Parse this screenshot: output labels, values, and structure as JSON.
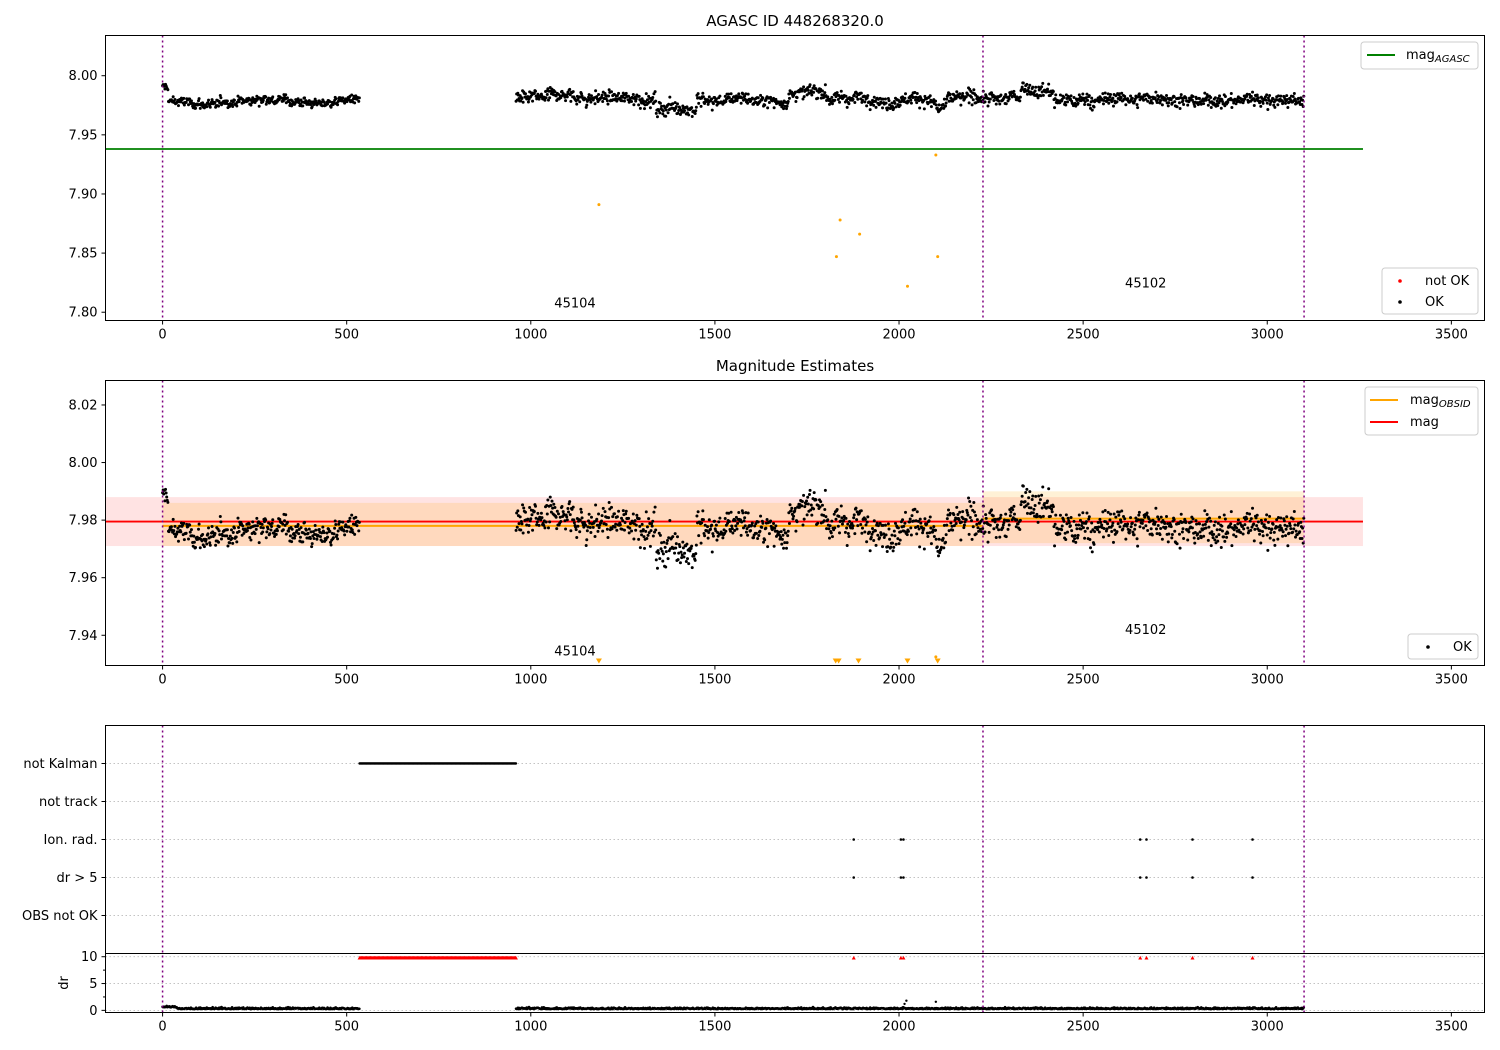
{
  "chart_data": [
    {
      "type": "scatter",
      "title": "AGASC ID 448268320.0",
      "xlim": [
        -155,
        3590
      ],
      "ylim": [
        7.793,
        8.034
      ],
      "xticks": [
        0,
        500,
        1000,
        1500,
        2000,
        2500,
        3000,
        3500
      ],
      "yticks": [
        7.8,
        7.85,
        7.9,
        7.95,
        8.0
      ],
      "ytick_labels": [
        "7.80",
        "7.85",
        "7.90",
        "7.95",
        "8.00"
      ],
      "vlines": [
        0,
        2228,
        3100
      ],
      "hline": {
        "name": "mag_AGASC",
        "y": 7.938,
        "x": [
          -155,
          3260
        ],
        "color": "#008000"
      },
      "segments": [
        {
          "x0": 0,
          "x1": 535,
          "base": 7.976,
          "amp": 0.005
        },
        {
          "x0": 960,
          "x1": 3100,
          "base": 7.978,
          "amp": 0.007
        }
      ],
      "outliers": [
        {
          "x": 1185,
          "y": 7.891
        },
        {
          "x": 1840,
          "y": 7.878
        },
        {
          "x": 1893,
          "y": 7.866
        },
        {
          "x": 1830,
          "y": 7.847
        },
        {
          "x": 2023,
          "y": 7.822
        },
        {
          "x": 2105,
          "y": 7.847
        },
        {
          "x": 2100,
          "y": 7.933
        }
      ],
      "obsid_labels": [
        {
          "text": "45104",
          "x": 1120,
          "y": 7.804
        },
        {
          "text": "45102",
          "x": 2670,
          "y": 7.821
        }
      ],
      "legend_top": [
        {
          "label": "mag",
          "sub": "AGASC",
          "color": "#008000"
        }
      ],
      "legend_bottom": [
        {
          "label": "not OK",
          "color": "#ff0000"
        },
        {
          "label": "OK",
          "color": "#000000"
        }
      ]
    },
    {
      "type": "scatter",
      "title": "Magnitude Estimates",
      "xlim": [
        -155,
        3590
      ],
      "ylim": [
        7.9295,
        8.0285
      ],
      "xticks": [
        0,
        500,
        1000,
        1500,
        2000,
        2500,
        3000,
        3500
      ],
      "yticks": [
        7.94,
        7.96,
        7.98,
        8.0,
        8.02
      ],
      "ytick_labels": [
        "7.94",
        "7.96",
        "7.98",
        "8.00",
        "8.02"
      ],
      "vlines": [
        0,
        2228,
        3100
      ],
      "mag": {
        "y": 7.9795,
        "band": [
          7.971,
          7.988
        ],
        "x": [
          -155,
          3260
        ],
        "color": "#ff0000"
      },
      "mag_obsid": [
        {
          "x0": 0,
          "x1": 2228,
          "y": 7.978,
          "band": [
            7.971,
            7.986
          ]
        },
        {
          "x0": 2228,
          "x1": 3100,
          "y": 7.9805,
          "band": [
            7.972,
            7.99
          ]
        }
      ],
      "segments": [
        {
          "x0": 0,
          "x1": 535,
          "base": 7.976,
          "amp": 0.005
        },
        {
          "x0": 960,
          "x1": 3100,
          "base": 7.978,
          "amp": 0.007
        }
      ],
      "lower_markers": [
        1185,
        1828,
        1836,
        1890,
        2023,
        2105
      ],
      "obsid_labels": [
        {
          "text": "45104",
          "x": 1120,
          "y": 7.933
        },
        {
          "text": "45102",
          "x": 2670,
          "y": 7.9405
        }
      ],
      "legend_top": [
        {
          "label": "mag",
          "sub": "OBSID",
          "color": "#ffa500"
        },
        {
          "label": "mag",
          "sub": "",
          "color": "#ff0000"
        }
      ],
      "legend_bottom": [
        {
          "label": "OK",
          "color": "#000000"
        }
      ]
    },
    {
      "type": "scatter",
      "title": "",
      "xlim": [
        -155,
        3590
      ],
      "xticks": [
        0,
        500,
        1000,
        1500,
        2000,
        2500,
        3000,
        3500
      ],
      "vlines": [
        0,
        2228,
        3100
      ],
      "flag_rows": [
        "not Kalman",
        "not track",
        "Ion. rad.",
        "dr > 5",
        "OBS not OK"
      ],
      "not_kalman_range": [
        535,
        960
      ],
      "ion_rad_x": [
        1877,
        2005,
        2012,
        2655,
        2672,
        2797,
        2960
      ],
      "dr5_x": [
        1877,
        2005,
        2012,
        2655,
        2672,
        2797,
        2960
      ],
      "dr": {
        "ylabel": "dr",
        "yticks": [
          0,
          5,
          10
        ],
        "ytick_labels": [
          "0",
          "5",
          "10"
        ],
        "ylim": [
          -0.4,
          10.6
        ],
        "clipped_range": [
          535,
          960
        ],
        "clipped_x": [
          1877,
          2005,
          2012,
          2655,
          2672,
          2797,
          2960
        ],
        "clipped_value": 10,
        "spikes": [
          {
            "x": 2020,
            "y": 1.8
          },
          {
            "x": 2015,
            "y": 1.2
          },
          {
            "x": 2100,
            "y": 1.6
          }
        ]
      }
    }
  ]
}
